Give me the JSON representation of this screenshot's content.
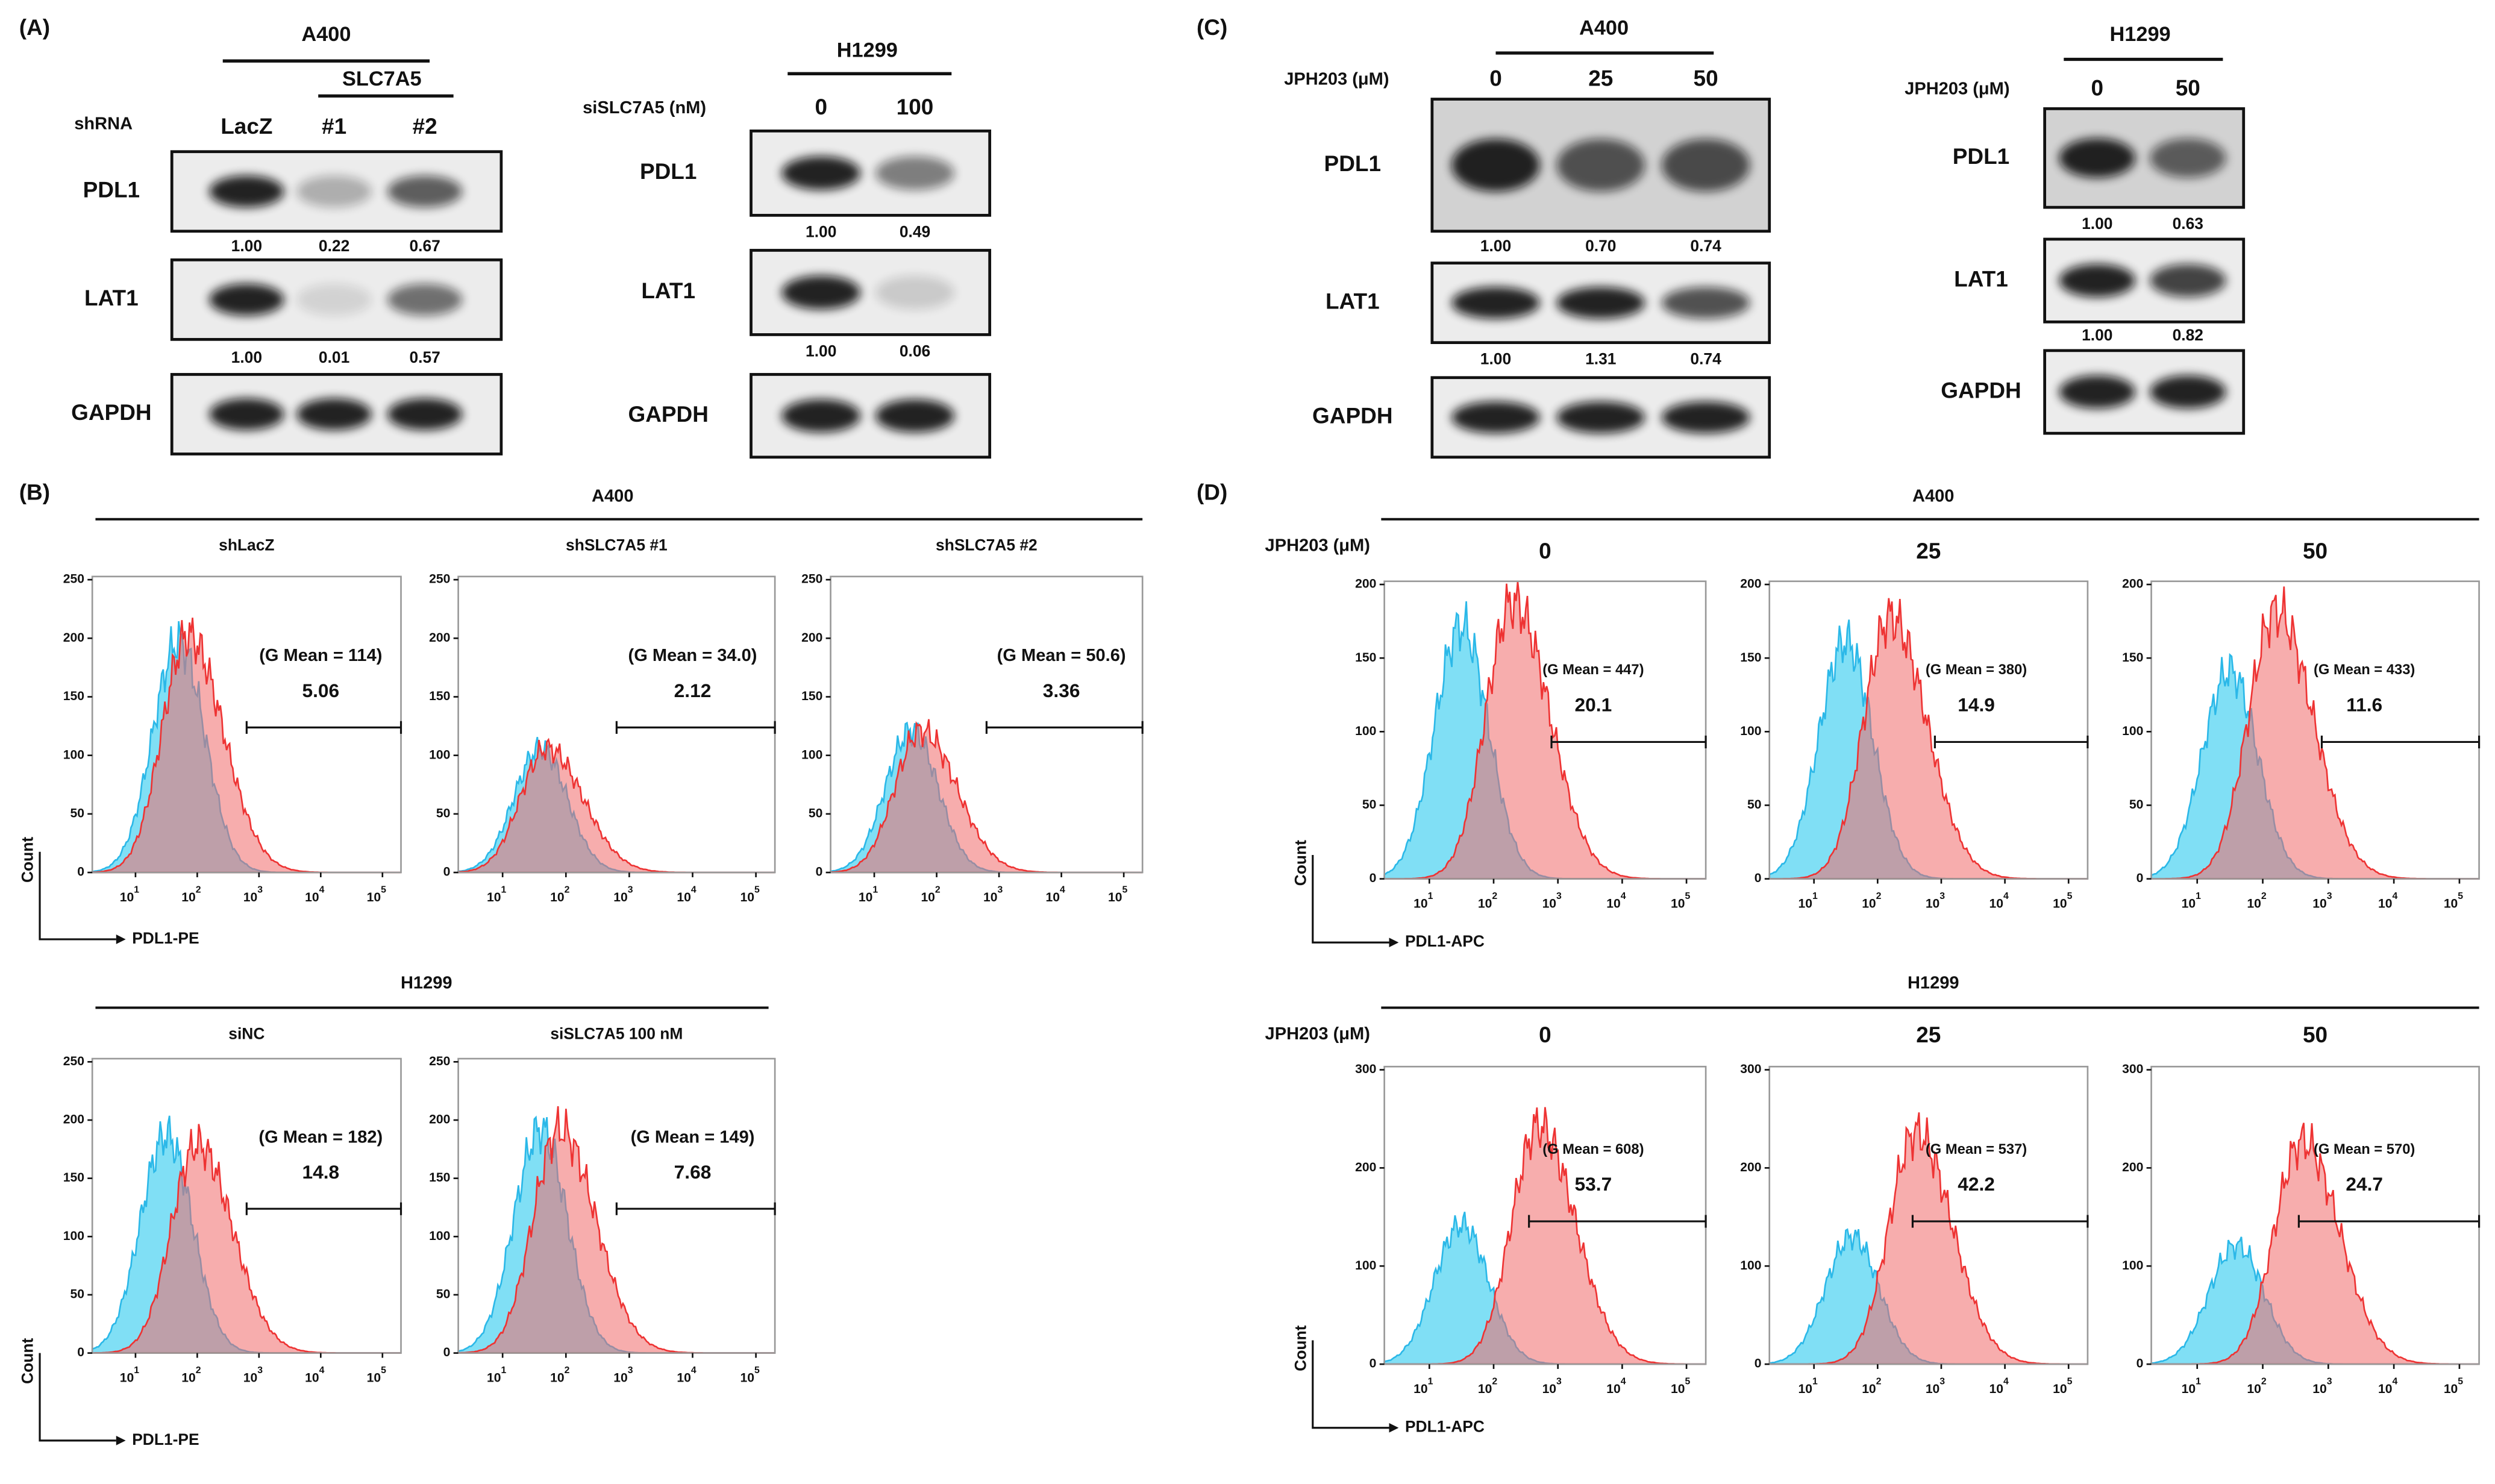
{
  "panel_a": {
    "label": "(A)",
    "blots": [
      {
        "cell_line": "A400",
        "group": "SLC7A5",
        "row_label": "shRNA",
        "lanes": [
          "LacZ",
          "#1",
          "#2"
        ],
        "rows": [
          {
            "name": "PDL1",
            "quant": [
              "1.00",
              "0.22",
              "0.67"
            ]
          },
          {
            "name": "LAT1",
            "quant": [
              "1.00",
              "0.01",
              "0.57"
            ]
          },
          {
            "name": "GAPDH"
          }
        ]
      },
      {
        "cell_line": "H1299",
        "row_label": "siSLC7A5 (nM)",
        "lanes": [
          "0",
          "100"
        ],
        "rows": [
          {
            "name": "PDL1",
            "quant": [
              "1.00",
              "0.49"
            ]
          },
          {
            "name": "LAT1",
            "quant": [
              "1.00",
              "0.06"
            ]
          },
          {
            "name": "GAPDH"
          }
        ]
      }
    ]
  },
  "panel_b": {
    "label": "(B)",
    "y_label": "Count",
    "x_label": "PDL1-PE",
    "x_base": "10",
    "x_exponents": [
      "1",
      "2",
      "3",
      "4",
      "5"
    ],
    "groups": [
      {
        "title": "A400",
        "yticks": [
          0,
          50,
          100,
          150,
          200,
          250
        ],
        "plots": [
          {
            "title": "shLacZ",
            "gmean": "(G Mean = 114)",
            "percent": "5.06"
          },
          {
            "title": "shSLC7A5 #1",
            "gmean": "(G Mean = 34.0)",
            "percent": "2.12"
          },
          {
            "title": "shSLC7A5 #2",
            "gmean": "(G Mean = 50.6)",
            "percent": "3.36"
          }
        ]
      },
      {
        "title": "H1299",
        "yticks": [
          0,
          50,
          100,
          150,
          200,
          250
        ],
        "plots": [
          {
            "title": "siNC",
            "gmean": "(G Mean = 182)",
            "percent": "14.8"
          },
          {
            "title": "siSLC7A5 100 nM",
            "gmean": "(G Mean = 149)",
            "percent": "7.68"
          }
        ]
      }
    ]
  },
  "panel_c": {
    "label": "(C)",
    "blots": [
      {
        "cell_line": "A400",
        "row_label": "JPH203 (μM)",
        "lanes": [
          "0",
          "25",
          "50"
        ],
        "rows": [
          {
            "name": "PDL1",
            "quant": [
              "1.00",
              "0.70",
              "0.74"
            ]
          },
          {
            "name": "LAT1",
            "quant": [
              "1.00",
              "1.31",
              "0.74"
            ]
          },
          {
            "name": "GAPDH"
          }
        ]
      },
      {
        "cell_line": "H1299",
        "row_label": "JPH203 (μM)",
        "lanes": [
          "0",
          "50"
        ],
        "rows": [
          {
            "name": "PDL1",
            "quant": [
              "1.00",
              "0.63"
            ]
          },
          {
            "name": "LAT1",
            "quant": [
              "1.00",
              "0.82"
            ]
          },
          {
            "name": "GAPDH"
          }
        ]
      }
    ]
  },
  "panel_d": {
    "label": "(D)",
    "y_label": "Count",
    "x_label": "PDL1-APC",
    "x_base": "10",
    "x_exponents": [
      "1",
      "2",
      "3",
      "4",
      "5"
    ],
    "groups": [
      {
        "title": "A400",
        "dose_label": "JPH203 (μM)",
        "yticks": [
          0,
          50,
          100,
          150,
          200
        ],
        "plots": [
          {
            "title": "0",
            "gmean": "(G Mean = 447)",
            "percent": "20.1"
          },
          {
            "title": "25",
            "gmean": "(G Mean = 380)",
            "percent": "14.9"
          },
          {
            "title": "50",
            "gmean": "(G Mean = 433)",
            "percent": "11.6"
          }
        ]
      },
      {
        "title": "H1299",
        "dose_label": "JPH203 (μM)",
        "yticks": [
          0,
          100,
          200,
          300
        ],
        "plots": [
          {
            "title": "0",
            "gmean": "(G Mean = 608)",
            "percent": "53.7"
          },
          {
            "title": "25",
            "gmean": "(G Mean = 537)",
            "percent": "42.2"
          },
          {
            "title": "50",
            "gmean": "(G Mean = 570)",
            "percent": "24.7"
          }
        ]
      }
    ]
  }
}
